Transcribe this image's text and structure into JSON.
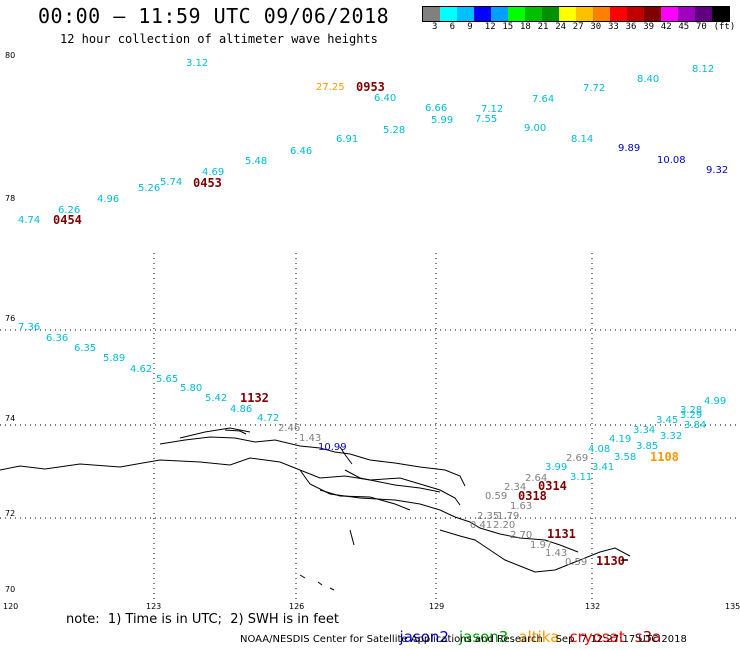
{
  "title": "00:00 – 11:59 UTC 09/06/2018",
  "subtitle": "12 hour collection of altimeter wave heights",
  "colorbar": {
    "colors": [
      "#808080",
      "#00ffff",
      "#00c0ff",
      "#0000ff",
      "#00a0ff",
      "#00ff00",
      "#00c000",
      "#009000",
      "#ffff00",
      "#ffc000",
      "#ff8000",
      "#ff0000",
      "#c00000",
      "#800000",
      "#ff00ff",
      "#a000c0",
      "#600080",
      "#000000"
    ],
    "labels": [
      "3",
      "6",
      "9",
      "12",
      "15",
      "18",
      "21",
      "24",
      "27",
      "30",
      "33",
      "36",
      "39",
      "42",
      "45",
      "70",
      "(ft)"
    ]
  },
  "axes": {
    "lon_labels": [
      "120",
      "123",
      "126",
      "129",
      "132",
      "135"
    ],
    "lat_labels": [
      "80",
      "78",
      "76",
      "74",
      "72",
      "70"
    ]
  },
  "points": [
    {
      "t": "3.12",
      "c": "#00bcd4"
    },
    {
      "t": "27.25",
      "c": "#ff9800"
    },
    {
      "t": "6.40",
      "c": "#00bcd4"
    },
    {
      "t": "6.66",
      "c": "#00bcd4"
    },
    {
      "t": "7.12",
      "c": "#00bcd4"
    },
    {
      "t": "7.64",
      "c": "#00bcd4"
    },
    {
      "t": "7.72",
      "c": "#00bcd4"
    },
    {
      "t": "8.40",
      "c": "#00bcd4"
    },
    {
      "t": "8.12",
      "c": "#00bcd4"
    },
    {
      "t": "5.99",
      "c": "#00bcd4"
    },
    {
      "t": "7.55",
      "c": "#00bcd4"
    },
    {
      "t": "9.00",
      "c": "#00bcd4"
    },
    {
      "t": "5.28",
      "c": "#00bcd4"
    },
    {
      "t": "6.91",
      "c": "#00bcd4"
    },
    {
      "t": "6.46",
      "c": "#00bcd4"
    },
    {
      "t": "8.14",
      "c": "#00bcd4"
    },
    {
      "t": "9.89",
      "c": "#0000cc"
    },
    {
      "t": "10.08",
      "c": "#0000cc"
    },
    {
      "t": "9.32",
      "c": "#0000cc"
    },
    {
      "t": "5.48",
      "c": "#00bcd4"
    },
    {
      "t": "4.69",
      "c": "#00bcd4"
    },
    {
      "t": "5.74",
      "c": "#00bcd4"
    },
    {
      "t": "5.26",
      "c": "#00bcd4"
    },
    {
      "t": "4.96",
      "c": "#00bcd4"
    },
    {
      "t": "6.26",
      "c": "#00bcd4"
    },
    {
      "t": "4.74",
      "c": "#00bcd4"
    },
    {
      "t": "7.36",
      "c": "#00bcd4"
    },
    {
      "t": "6.36",
      "c": "#00bcd4"
    },
    {
      "t": "6.35",
      "c": "#00bcd4"
    },
    {
      "t": "5.89",
      "c": "#00bcd4"
    },
    {
      "t": "4.62",
      "c": "#00bcd4"
    },
    {
      "t": "5.65",
      "c": "#00bcd4"
    },
    {
      "t": "5.80",
      "c": "#00bcd4"
    },
    {
      "t": "5.42",
      "c": "#00bcd4"
    },
    {
      "t": "4.86",
      "c": "#00bcd4"
    },
    {
      "t": "4.72",
      "c": "#00bcd4"
    },
    {
      "t": "2.46",
      "c": "#808080"
    },
    {
      "t": "1.43",
      "c": "#808080"
    },
    {
      "t": "10.99",
      "c": "#0000cc"
    },
    {
      "t": "4.99",
      "c": "#00bcd4"
    },
    {
      "t": "3.28",
      "c": "#00bcd4"
    },
    {
      "t": "3.29",
      "c": "#00bcd4"
    },
    {
      "t": "3.45",
      "c": "#00bcd4"
    },
    {
      "t": "3.84",
      "c": "#00bcd4"
    },
    {
      "t": "3.34",
      "c": "#00bcd4"
    },
    {
      "t": "3.32",
      "c": "#00bcd4"
    },
    {
      "t": "4.19",
      "c": "#00bcd4"
    },
    {
      "t": "3.85",
      "c": "#00bcd4"
    },
    {
      "t": "4.08",
      "c": "#00bcd4"
    },
    {
      "t": "3.58",
      "c": "#00bcd4"
    },
    {
      "t": "3.41",
      "c": "#00bcd4"
    },
    {
      "t": "3.99",
      "c": "#00bcd4"
    },
    {
      "t": "3.11",
      "c": "#00bcd4"
    },
    {
      "t": "2.69",
      "c": "#808080"
    },
    {
      "t": "2.64",
      "c": "#808080"
    },
    {
      "t": "2.34",
      "c": "#808080"
    },
    {
      "t": "0.59",
      "c": "#808080"
    },
    {
      "t": "1.63",
      "c": "#808080"
    },
    {
      "t": "2.35",
      "c": "#808080"
    },
    {
      "t": "1.79",
      "c": "#808080"
    },
    {
      "t": "0.41",
      "c": "#808080"
    },
    {
      "t": "2.20",
      "c": "#808080"
    },
    {
      "t": "2.70",
      "c": "#808080"
    },
    {
      "t": "1.97",
      "c": "#808080"
    },
    {
      "t": "1.43",
      "c": "#808080"
    },
    {
      "t": "0.59",
      "c": "#808080"
    }
  ],
  "times": [
    {
      "t": "0953",
      "c": "#800000"
    },
    {
      "t": "0453",
      "c": "#800000"
    },
    {
      "t": "0454",
      "c": "#800000"
    },
    {
      "t": "1132",
      "c": "#800000"
    },
    {
      "t": "0314",
      "c": "#800000"
    },
    {
      "t": "0318",
      "c": "#800000"
    },
    {
      "t": "1131",
      "c": "#800000"
    },
    {
      "t": "1130",
      "c": "#800000"
    },
    {
      "t": "1108",
      "c": "#ff9800"
    }
  ],
  "note": "note:  1) Time is in UTC;  2) SWH is in feet",
  "legend": [
    {
      "name": "jason2",
      "color": "#0000cc"
    },
    {
      "name": "jason3",
      "color": "#00a000"
    },
    {
      "name": "altika",
      "color": "#ff9800"
    },
    {
      "name": "cryosat",
      "color": "#ff0000"
    },
    {
      "name": "s3a",
      "color": "#a00000"
    }
  ],
  "credit": "NOAA/NESDIS Center for Satellite Applications and Research    Sep  7 12:27:17 UTC 2018"
}
